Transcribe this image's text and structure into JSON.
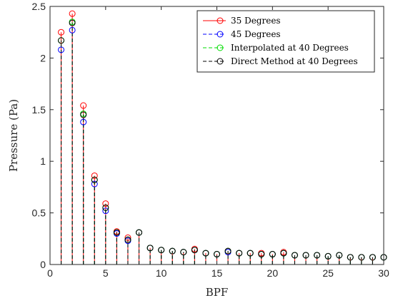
{
  "chart_data": {
    "type": "stem",
    "title": "",
    "xlabel": "BPF",
    "ylabel": "Pressure (Pa)",
    "xlim": [
      0,
      30
    ],
    "ylim": [
      0,
      2.5
    ],
    "xticks": [
      0,
      5,
      10,
      15,
      20,
      25,
      30
    ],
    "yticks": [
      0,
      0.5,
      1,
      1.5,
      2,
      2.5
    ],
    "xtick_labels": [
      "0",
      "5",
      "10",
      "15",
      "20",
      "25",
      "30"
    ],
    "ytick_labels": [
      "0",
      "0.5",
      "1",
      "1.5",
      "2",
      "2.5"
    ],
    "grid": false,
    "legend_position": "top-right",
    "x": [
      1,
      2,
      3,
      4,
      5,
      6,
      7,
      8,
      9,
      10,
      11,
      12,
      13,
      14,
      15,
      16,
      17,
      18,
      19,
      20,
      21,
      22,
      23,
      24,
      25,
      26,
      27,
      28,
      29,
      30
    ],
    "series": [
      {
        "name": "35 Degrees",
        "color": "#ff0000",
        "line_style": "solid",
        "values": [
          2.25,
          2.43,
          1.54,
          0.86,
          0.59,
          0.32,
          0.26,
          0.31,
          0.16,
          0.14,
          0.13,
          0.12,
          0.15,
          0.11,
          0.1,
          0.13,
          0.11,
          0.11,
          0.11,
          0.1,
          0.12,
          0.09,
          0.09,
          0.09,
          0.08,
          0.09,
          0.07,
          0.07,
          0.07,
          0.07
        ]
      },
      {
        "name": "45 Degrees",
        "color": "#0000ff",
        "line_style": "dashed",
        "values": [
          2.08,
          2.27,
          1.38,
          0.78,
          0.52,
          0.3,
          0.23,
          0.31,
          0.16,
          0.14,
          0.13,
          0.12,
          0.14,
          0.11,
          0.1,
          0.12,
          0.11,
          0.11,
          0.1,
          0.1,
          0.11,
          0.09,
          0.09,
          0.09,
          0.08,
          0.09,
          0.07,
          0.07,
          0.07,
          0.07
        ]
      },
      {
        "name": "Interpolated at 40 Degrees",
        "color": "#00dd00",
        "line_style": "dashed",
        "values": [
          2.17,
          2.35,
          1.46,
          0.82,
          0.55,
          0.31,
          0.24,
          0.31,
          0.16,
          0.14,
          0.13,
          0.12,
          0.14,
          0.11,
          0.1,
          0.13,
          0.11,
          0.11,
          0.1,
          0.1,
          0.11,
          0.09,
          0.09,
          0.09,
          0.08,
          0.09,
          0.07,
          0.07,
          0.07,
          0.07
        ]
      },
      {
        "name": "Direct Method at 40 Degrees",
        "color": "#000000",
        "line_style": "dashed",
        "values": [
          2.17,
          2.34,
          1.45,
          0.82,
          0.55,
          0.31,
          0.24,
          0.31,
          0.16,
          0.14,
          0.13,
          0.12,
          0.14,
          0.11,
          0.1,
          0.13,
          0.11,
          0.11,
          0.1,
          0.1,
          0.11,
          0.09,
          0.09,
          0.09,
          0.08,
          0.09,
          0.07,
          0.07,
          0.07,
          0.07
        ]
      }
    ]
  }
}
